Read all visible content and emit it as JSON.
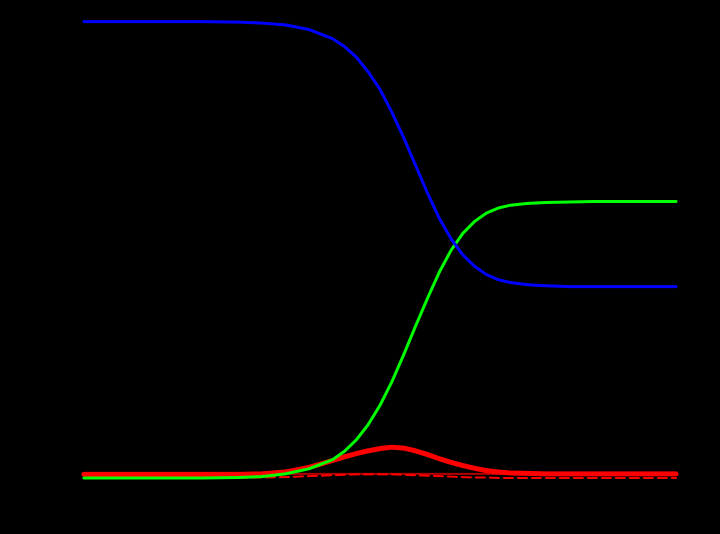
{
  "chart_data": {
    "type": "line",
    "title": "",
    "xlabel": "",
    "ylabel": "",
    "background": "#000000",
    "grid": false,
    "xlim": [
      0,
      100
    ],
    "ylim": [
      0,
      100
    ],
    "x": [
      0,
      10,
      20,
      26,
      30,
      34,
      38,
      42,
      44,
      46,
      48,
      50,
      52,
      54,
      56,
      58,
      60,
      62,
      64,
      66,
      68,
      70,
      72,
      75,
      78,
      82,
      86,
      90,
      95,
      100
    ],
    "series": [
      {
        "color": "#0000ff",
        "style": "solid",
        "width": 3,
        "values": [
          99.2,
          99.2,
          99.2,
          99.1,
          98.9,
          98.5,
          97.5,
          95.5,
          93.8,
          91.5,
          88.3,
          84.5,
          79.5,
          74.0,
          68.0,
          62.0,
          56.5,
          52.0,
          48.5,
          46.0,
          44.2,
          43.1,
          42.5,
          42.0,
          41.8,
          41.6,
          41.6,
          41.6,
          41.6,
          41.6
        ]
      },
      {
        "color": "#00ff00",
        "style": "solid",
        "width": 3,
        "values": [
          0.0,
          0.0,
          0.0,
          0.1,
          0.3,
          0.9,
          2.0,
          4.0,
          5.8,
          8.3,
          11.6,
          15.8,
          20.9,
          26.8,
          33.0,
          39.0,
          44.7,
          49.5,
          53.2,
          55.8,
          57.6,
          58.7,
          59.3,
          59.7,
          59.9,
          60.0,
          60.1,
          60.1,
          60.1,
          60.1
        ]
      },
      {
        "color": "#ff0000",
        "style": "solid",
        "width": 5,
        "values": [
          0.8,
          0.8,
          0.8,
          0.8,
          0.9,
          1.3,
          2.3,
          3.8,
          4.6,
          5.3,
          5.9,
          6.4,
          6.7,
          6.5,
          5.9,
          5.1,
          4.2,
          3.4,
          2.7,
          2.1,
          1.6,
          1.3,
          1.1,
          1.0,
          0.9,
          0.9,
          0.9,
          0.9,
          0.9,
          0.9
        ]
      },
      {
        "color": "#ff0000",
        "style": "dashed",
        "width": 2,
        "values": [
          0.0,
          0.0,
          0.0,
          0.0,
          0.1,
          0.2,
          0.4,
          0.6,
          0.7,
          0.8,
          0.8,
          0.8,
          0.8,
          0.7,
          0.6,
          0.5,
          0.4,
          0.3,
          0.2,
          0.1,
          0.1,
          0.0,
          0.0,
          0.0,
          0.0,
          0.0,
          0.0,
          0.0,
          0.0,
          0.0
        ]
      },
      {
        "color": "#b00000",
        "style": "solid",
        "width": 2,
        "values": [
          0.9,
          0.9,
          0.9,
          0.9,
          0.9,
          0.9,
          0.9,
          0.9,
          0.9,
          0.9,
          0.9,
          0.9,
          0.9,
          0.9,
          0.9,
          0.9,
          0.9,
          0.9,
          0.9,
          0.9,
          0.9,
          0.9,
          0.9,
          0.9,
          0.9,
          0.9,
          0.9,
          0.9,
          0.9,
          0.9
        ]
      }
    ]
  }
}
